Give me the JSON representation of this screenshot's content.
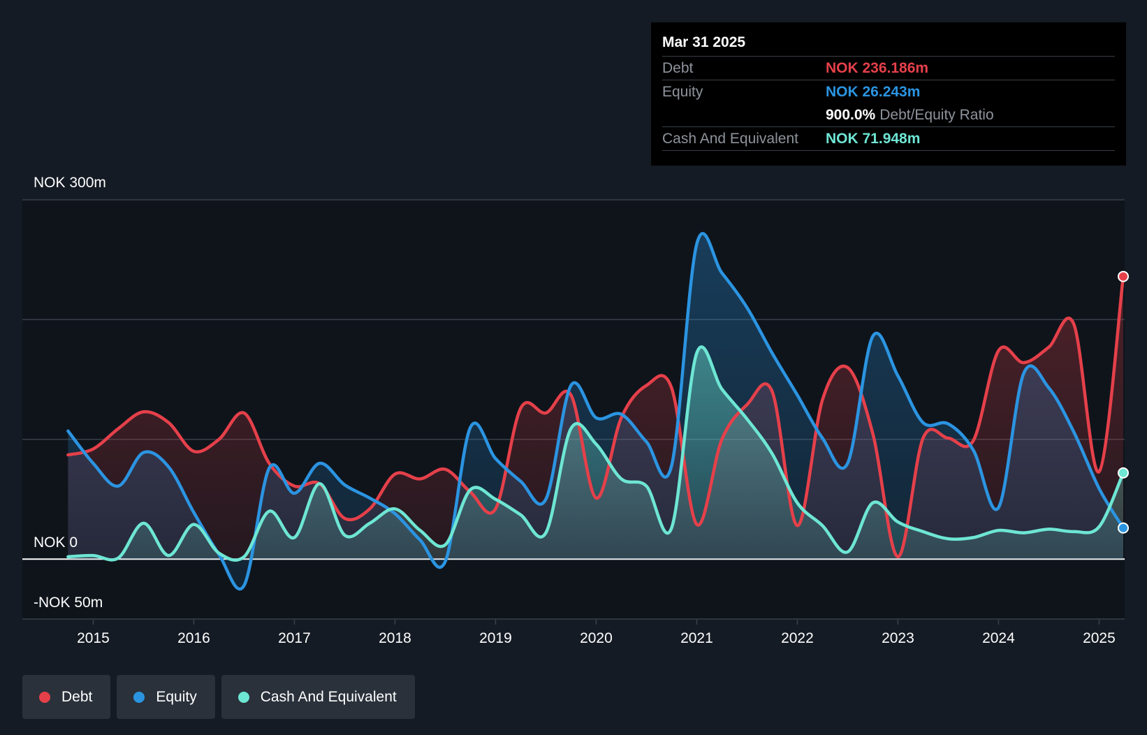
{
  "tooltip": {
    "date": "Mar 31 2025",
    "debt_label": "Debt",
    "debt_value": "NOK 236.186m",
    "equity_label": "Equity",
    "equity_value": "NOK 26.243m",
    "ratio_value": "900.0%",
    "ratio_label": "Debt/Equity Ratio",
    "cash_label": "Cash And Equivalent",
    "cash_value": "NOK 71.948m"
  },
  "legend": [
    {
      "label": "Debt",
      "color": "#e5404a"
    },
    {
      "label": "Equity",
      "color": "#2b94e1"
    },
    {
      "label": "Cash And Equivalent",
      "color": "#6ee6d4"
    }
  ],
  "chart_data": {
    "type": "area",
    "ylim": [
      -50,
      300
    ],
    "y_tick_labels": [
      {
        "value": 300,
        "label": "NOK 300m"
      },
      {
        "value": 0,
        "label": "NOK 0"
      },
      {
        "value": -50,
        "label": "-NOK 50m"
      }
    ],
    "gridlines": [
      300,
      200,
      100,
      0
    ],
    "xlim": [
      2014.74,
      2025.24
    ],
    "x_ticks": [
      {
        "value": 2015,
        "label": "2015"
      },
      {
        "value": 2016,
        "label": "2016"
      },
      {
        "value": 2017,
        "label": "2017"
      },
      {
        "value": 2018,
        "label": "2018"
      },
      {
        "value": 2019,
        "label": "2019"
      },
      {
        "value": 2020,
        "label": "2020"
      },
      {
        "value": 2021,
        "label": "2021"
      },
      {
        "value": 2022,
        "label": "2022"
      },
      {
        "value": 2023,
        "label": "2023"
      },
      {
        "value": 2024,
        "label": "2024"
      },
      {
        "value": 2025,
        "label": "2025"
      }
    ],
    "series": [
      {
        "name": "Debt",
        "color": "#e5404a",
        "points": [
          [
            2014.75,
            87
          ],
          [
            2015.0,
            92
          ],
          [
            2015.25,
            109
          ],
          [
            2015.5,
            123
          ],
          [
            2015.75,
            114
          ],
          [
            2016.0,
            90
          ],
          [
            2016.25,
            100
          ],
          [
            2016.5,
            122
          ],
          [
            2016.75,
            80
          ],
          [
            2017.0,
            61
          ],
          [
            2017.25,
            63
          ],
          [
            2017.5,
            34
          ],
          [
            2017.75,
            42
          ],
          [
            2018.0,
            71
          ],
          [
            2018.25,
            67
          ],
          [
            2018.5,
            75
          ],
          [
            2018.75,
            56
          ],
          [
            2019.0,
            42
          ],
          [
            2019.25,
            126
          ],
          [
            2019.5,
            122
          ],
          [
            2019.75,
            137
          ],
          [
            2020.0,
            51
          ],
          [
            2020.25,
            118
          ],
          [
            2020.5,
            145
          ],
          [
            2020.75,
            143
          ],
          [
            2021.0,
            29
          ],
          [
            2021.25,
            100
          ],
          [
            2021.5,
            129
          ],
          [
            2021.75,
            140
          ],
          [
            2022.0,
            28
          ],
          [
            2022.25,
            133
          ],
          [
            2022.5,
            160
          ],
          [
            2022.75,
            105
          ],
          [
            2023.0,
            2
          ],
          [
            2023.25,
            101
          ],
          [
            2023.5,
            101
          ],
          [
            2023.75,
            99
          ],
          [
            2024.0,
            174
          ],
          [
            2024.25,
            164
          ],
          [
            2024.5,
            177
          ],
          [
            2024.75,
            196
          ],
          [
            2025.0,
            73
          ],
          [
            2025.24,
            236
          ]
        ]
      },
      {
        "name": "Equity",
        "color": "#2b94e1",
        "points": [
          [
            2014.75,
            107
          ],
          [
            2015.0,
            80
          ],
          [
            2015.25,
            61
          ],
          [
            2015.5,
            89
          ],
          [
            2015.75,
            77
          ],
          [
            2016.0,
            39
          ],
          [
            2016.25,
            4
          ],
          [
            2016.5,
            -22
          ],
          [
            2016.75,
            76
          ],
          [
            2017.0,
            55
          ],
          [
            2017.25,
            80
          ],
          [
            2017.5,
            62
          ],
          [
            2017.75,
            51
          ],
          [
            2018.0,
            38
          ],
          [
            2018.25,
            16
          ],
          [
            2018.5,
            -2
          ],
          [
            2018.75,
            110
          ],
          [
            2019.0,
            84
          ],
          [
            2019.25,
            65
          ],
          [
            2019.5,
            50
          ],
          [
            2019.75,
            145
          ],
          [
            2020.0,
            118
          ],
          [
            2020.25,
            121
          ],
          [
            2020.5,
            98
          ],
          [
            2020.75,
            78
          ],
          [
            2021.0,
            263
          ],
          [
            2021.25,
            239
          ],
          [
            2021.5,
            210
          ],
          [
            2021.75,
            172
          ],
          [
            2022.0,
            137
          ],
          [
            2022.25,
            101
          ],
          [
            2022.5,
            80
          ],
          [
            2022.75,
            186
          ],
          [
            2023.0,
            153
          ],
          [
            2023.25,
            114
          ],
          [
            2023.5,
            113
          ],
          [
            2023.75,
            91
          ],
          [
            2024.0,
            43
          ],
          [
            2024.25,
            155
          ],
          [
            2024.5,
            143
          ],
          [
            2024.75,
            106
          ],
          [
            2025.0,
            59
          ],
          [
            2025.24,
            26
          ]
        ]
      },
      {
        "name": "Cash And Equivalent",
        "color": "#6ee6d4",
        "points": [
          [
            2014.75,
            2
          ],
          [
            2015.0,
            3
          ],
          [
            2015.25,
            1
          ],
          [
            2015.5,
            30
          ],
          [
            2015.75,
            3
          ],
          [
            2016.0,
            29
          ],
          [
            2016.25,
            5
          ],
          [
            2016.5,
            2
          ],
          [
            2016.75,
            40
          ],
          [
            2017.0,
            18
          ],
          [
            2017.25,
            63
          ],
          [
            2017.5,
            20
          ],
          [
            2017.75,
            30
          ],
          [
            2018.0,
            42
          ],
          [
            2018.25,
            24
          ],
          [
            2018.5,
            12
          ],
          [
            2018.75,
            58
          ],
          [
            2019.0,
            50
          ],
          [
            2019.25,
            37
          ],
          [
            2019.5,
            22
          ],
          [
            2019.75,
            109
          ],
          [
            2020.0,
            96
          ],
          [
            2020.25,
            67
          ],
          [
            2020.5,
            61
          ],
          [
            2020.75,
            26
          ],
          [
            2021.0,
            172
          ],
          [
            2021.25,
            142
          ],
          [
            2021.5,
            117
          ],
          [
            2021.75,
            88
          ],
          [
            2022.0,
            47
          ],
          [
            2022.25,
            28
          ],
          [
            2022.5,
            6
          ],
          [
            2022.75,
            47
          ],
          [
            2023.0,
            31
          ],
          [
            2023.25,
            23
          ],
          [
            2023.5,
            17
          ],
          [
            2023.75,
            18
          ],
          [
            2024.0,
            24
          ],
          [
            2024.25,
            22
          ],
          [
            2024.5,
            25
          ],
          [
            2024.75,
            23
          ],
          [
            2025.0,
            27
          ],
          [
            2025.24,
            72
          ]
        ]
      }
    ]
  }
}
